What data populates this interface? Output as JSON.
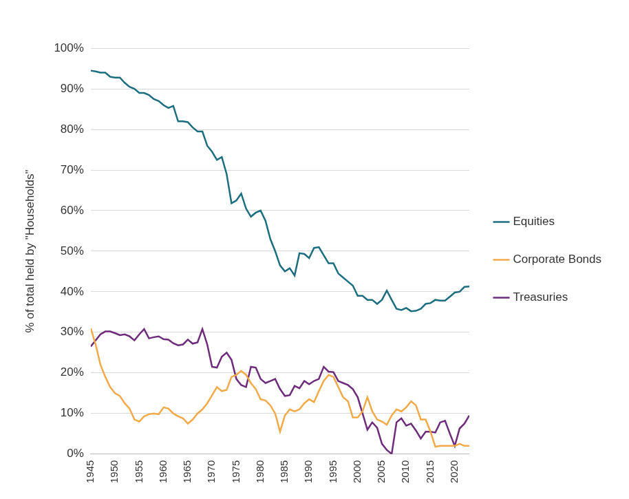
{
  "chart_data": {
    "type": "line",
    "y_label": "% of total held by \"Households\"",
    "x": [
      1945,
      1946,
      1947,
      1948,
      1949,
      1950,
      1951,
      1952,
      1953,
      1954,
      1955,
      1956,
      1957,
      1958,
      1959,
      1960,
      1961,
      1962,
      1963,
      1964,
      1965,
      1966,
      1967,
      1968,
      1969,
      1970,
      1971,
      1972,
      1973,
      1974,
      1975,
      1976,
      1977,
      1978,
      1979,
      1980,
      1981,
      1982,
      1983,
      1984,
      1985,
      1986,
      1987,
      1988,
      1989,
      1990,
      1991,
      1992,
      1993,
      1994,
      1995,
      1996,
      1997,
      1998,
      1999,
      2000,
      2001,
      2002,
      2003,
      2004,
      2005,
      2006,
      2007,
      2008,
      2009,
      2010,
      2011,
      2012,
      2013,
      2014,
      2015,
      2016,
      2017,
      2018,
      2019,
      2020,
      2021,
      2022,
      2023
    ],
    "series": [
      {
        "name": "Equities",
        "color": "#1b6e80",
        "values": [
          94.5,
          94.3,
          94,
          94,
          93,
          92.8,
          92.8,
          91.5,
          90.5,
          90,
          89,
          89,
          88.5,
          87.5,
          87,
          86,
          85.3,
          85.8,
          82,
          82,
          81.8,
          80.5,
          79.5,
          79.5,
          76,
          74.5,
          72.5,
          73.2,
          69,
          61.8,
          62.5,
          64.2,
          60.5,
          58.5,
          59.5,
          60,
          57.5,
          53,
          50,
          46.5,
          45,
          45.8,
          44,
          49.5,
          49.3,
          48.3,
          50.8,
          51,
          49,
          47,
          47,
          44.5,
          43.5,
          42.5,
          41.5,
          39,
          39,
          38,
          38,
          37,
          38,
          40.3,
          38,
          35.8,
          35.5,
          36,
          35.2,
          35.3,
          35.8,
          37,
          37.2,
          38,
          37.8,
          37.8,
          38.8,
          39.8,
          40,
          41.2,
          41.3
        ]
      },
      {
        "name": "Corporate Bonds",
        "color": "#f2a948",
        "values": [
          31,
          27,
          22,
          19,
          16.5,
          15,
          14.3,
          12.5,
          11.2,
          8.5,
          8,
          9.3,
          9.8,
          10,
          9.8,
          11.5,
          11.2,
          10,
          9.3,
          8.8,
          7.5,
          8.5,
          10,
          11,
          12.5,
          14.5,
          16.5,
          15.5,
          15.8,
          19,
          19.5,
          20.5,
          19.5,
          17.5,
          16,
          13.5,
          13.2,
          12,
          10,
          5.5,
          9.5,
          11,
          10.5,
          11,
          12.5,
          13.5,
          12.8,
          15.5,
          18,
          19.5,
          19,
          16.5,
          14,
          13,
          9,
          9,
          10.5,
          14,
          10.5,
          8.5,
          8,
          7.2,
          9.5,
          11,
          10.5,
          11.5,
          13,
          12,
          8.5,
          8.5,
          5.5,
          1.8,
          2,
          2,
          2,
          2,
          2.5,
          2,
          2
        ]
      },
      {
        "name": "Treasuries",
        "color": "#6e2b7c",
        "values": [
          26.5,
          28,
          29.5,
          30.2,
          30.2,
          29.8,
          29.3,
          29.5,
          29,
          28,
          29.5,
          30.8,
          28.5,
          28.8,
          29,
          28.3,
          28.2,
          27.3,
          26.8,
          27,
          28.2,
          27.2,
          27.5,
          30.8,
          27,
          21.5,
          21.3,
          24,
          25,
          23.2,
          18.5,
          17,
          16.5,
          21.5,
          21.3,
          18.5,
          17.5,
          18,
          18.5,
          16,
          14.3,
          14.5,
          16.8,
          16.2,
          18,
          17.2,
          18,
          18.5,
          21.5,
          20.3,
          20.2,
          18,
          17.5,
          17,
          16,
          14,
          10,
          6,
          7.8,
          6.5,
          2.5,
          1,
          0,
          7.8,
          8.8,
          7,
          7.5,
          5.8,
          3.8,
          5.5,
          5.5,
          5.3,
          7.8,
          8.2,
          5,
          2,
          6.3,
          7.5,
          9.5
        ]
      }
    ],
    "xlim": [
      1945,
      2023
    ],
    "xticks": [
      1945,
      1950,
      1955,
      1960,
      1965,
      1970,
      1975,
      1980,
      1985,
      1990,
      1995,
      2000,
      2005,
      2010,
      2015,
      2020
    ],
    "ylim": [
      0,
      100
    ],
    "yticks": [
      {
        "value": 0,
        "label": "0%"
      },
      {
        "value": 10,
        "label": "10%"
      },
      {
        "value": 20,
        "label": "20%"
      },
      {
        "value": 30,
        "label": "30%"
      },
      {
        "value": 40,
        "label": "40%"
      },
      {
        "value": 50,
        "label": "50%"
      },
      {
        "value": 60,
        "label": "60%"
      },
      {
        "value": 70,
        "label": "70%"
      },
      {
        "value": 80,
        "label": "80%"
      },
      {
        "value": 90,
        "label": "90%"
      },
      {
        "value": 100,
        "label": "100%"
      }
    ],
    "grid": true,
    "legend": "right"
  }
}
